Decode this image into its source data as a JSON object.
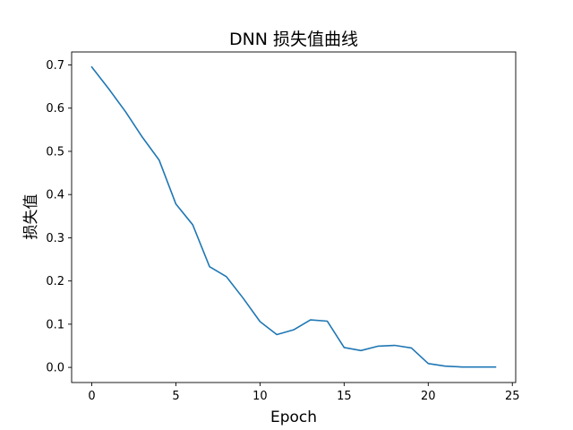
{
  "chart_data": {
    "type": "line",
    "title": "DNN 损失值曲线",
    "xlabel": "Epoch",
    "ylabel": "损失值",
    "xlim": [
      -1.2,
      25.2
    ],
    "ylim": [
      -0.035,
      0.73
    ],
    "xticks": [
      0,
      5,
      10,
      15,
      20,
      25
    ],
    "xtick_labels": [
      "0",
      "5",
      "10",
      "15",
      "20",
      "25"
    ],
    "yticks": [
      0.0,
      0.1,
      0.2,
      0.3,
      0.4,
      0.5,
      0.6,
      0.7
    ],
    "ytick_labels": [
      "0.0",
      "0.1",
      "0.2",
      "0.3",
      "0.4",
      "0.5",
      "0.6",
      "0.7"
    ],
    "grid": false,
    "series": [
      {
        "color": "#1f77b4",
        "x": [
          0,
          1,
          2,
          3,
          4,
          5,
          6,
          7,
          8,
          9,
          10,
          11,
          12,
          13,
          14,
          15,
          16,
          17,
          18,
          19,
          20,
          21,
          22,
          23,
          24
        ],
        "y": [
          0.695,
          0.645,
          0.592,
          0.533,
          0.48,
          0.378,
          0.33,
          0.233,
          0.21,
          0.16,
          0.106,
          0.076,
          0.087,
          0.11,
          0.107,
          0.046,
          0.039,
          0.049,
          0.051,
          0.045,
          0.009,
          0.003,
          0.001,
          0.001,
          0.001
        ]
      }
    ]
  }
}
